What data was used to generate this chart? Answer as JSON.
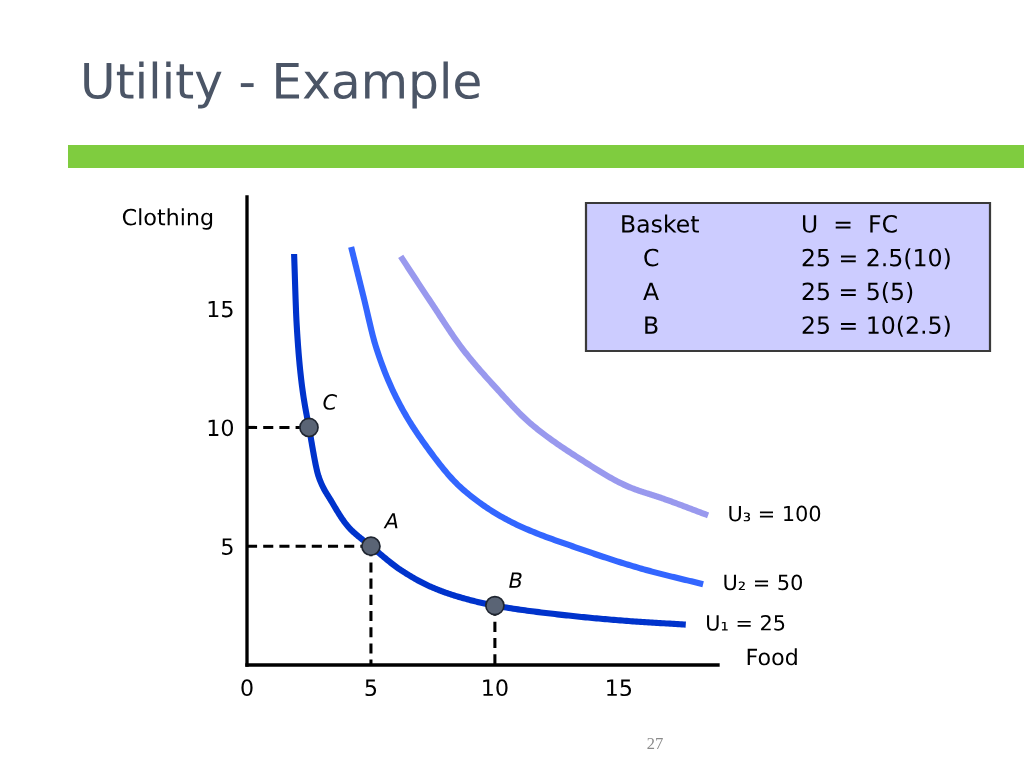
{
  "chart_data": [
    {
      "type": "line",
      "title": "Utility - Example",
      "xlabel": "Food",
      "ylabel": "Clothing",
      "xlim": [
        0,
        19
      ],
      "ylim": [
        0,
        19.7
      ],
      "xticks": [
        0,
        5,
        10,
        15
      ],
      "yticks": [
        5,
        10,
        15
      ],
      "series": [
        {
          "type": "line",
          "name": "U₁ = 25",
          "color": "#0033cc",
          "x": [
            1.9,
            2.0,
            2.2,
            2.5,
            2.9,
            3.4,
            4.1,
            5,
            6.2,
            7.4,
            8.6,
            10,
            12.8,
            15.4,
            17.7
          ],
          "values": [
            17.3,
            14.4,
            11.9,
            10,
            7.9,
            6.9,
            5.8,
            5,
            4.0,
            3.3,
            2.85,
            2.5,
            2.1,
            1.85,
            1.7
          ]
        },
        {
          "type": "line",
          "name": "U₂ = 50",
          "color": "#3366ff",
          "x": [
            4.2,
            4.7,
            5.2,
            6.0,
            7.1,
            8.7,
            10.7,
            13.4,
            16.1,
            18.4
          ],
          "values": [
            17.6,
            15.5,
            13.4,
            11.3,
            9.4,
            7.4,
            6.0,
            4.9,
            4.0,
            3.4
          ]
        },
        {
          "type": "line",
          "name": "U₃ = 100",
          "color": "#9999ee",
          "x": [
            6.2,
            7.4,
            8.7,
            10.1,
            11.4,
            13.4,
            15.4,
            16.8,
            18.6
          ],
          "values": [
            17.2,
            15.3,
            13.3,
            11.6,
            10.2,
            8.7,
            7.5,
            7.0,
            6.3
          ]
        },
        {
          "type": "line",
          "color": "#000000",
          "line_style": "dashed",
          "x": [
            0,
            2.5
          ],
          "values": [
            10,
            10
          ]
        },
        {
          "type": "line",
          "color": "#000000",
          "line_style": "dashed",
          "x": [
            0,
            5
          ],
          "values": [
            5,
            5
          ]
        },
        {
          "type": "line",
          "color": "#000000",
          "line_style": "dashed",
          "x": [
            5,
            5
          ],
          "values": [
            5,
            0
          ]
        },
        {
          "type": "line",
          "color": "#000000",
          "line_style": "dashed",
          "x": [
            10,
            10
          ],
          "values": [
            2.5,
            0
          ]
        },
        {
          "type": "scatter",
          "color": "#5a6475",
          "marker": "circle",
          "x": [
            2.5,
            5,
            10
          ],
          "values": [
            10,
            5,
            2.5
          ]
        }
      ],
      "annotations": [
        {
          "text": "C",
          "x": 2.5,
          "y": 10
        },
        {
          "text": "A",
          "x": 5,
          "y": 5
        },
        {
          "text": "B",
          "x": 10,
          "y": 2.5
        },
        "27"
      ]
    },
    {
      "type": "other",
      "annotations": [
        "Basket",
        "U  =  FC",
        "C",
        "25 = 2.5(10)",
        "A",
        "25 = 5(5)",
        "B",
        "25 = 10(2.5)"
      ]
    }
  ]
}
